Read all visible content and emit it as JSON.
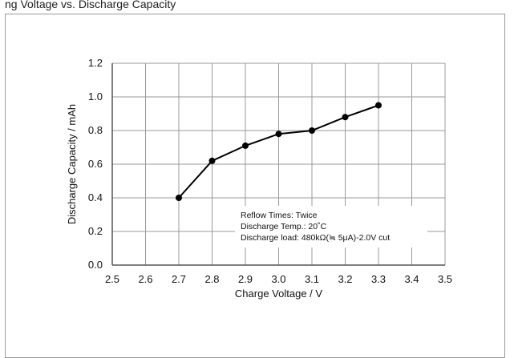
{
  "top_caption": "ng Voltage vs. Discharge Capacity",
  "chart_data": {
    "type": "line",
    "title": "",
    "xlabel": "Charge Voltage / V",
    "ylabel": "Discharge Capacity / mAh",
    "xlim": [
      2.5,
      3.5
    ],
    "ylim": [
      0.0,
      1.2
    ],
    "x_ticks": [
      "2.5",
      "2.6",
      "2.7",
      "2.8",
      "2.9",
      "3.0",
      "3.1",
      "3.2",
      "3.3",
      "3.4",
      "3.5"
    ],
    "y_ticks": [
      "0.0",
      "0.2",
      "0.4",
      "0.6",
      "0.8",
      "1.0",
      "1.2"
    ],
    "grid": true,
    "series": [
      {
        "x": [
          2.7,
          2.8,
          2.9,
          3.0,
          3.1,
          3.2,
          3.3
        ],
        "y": [
          0.4,
          0.62,
          0.71,
          0.78,
          0.8,
          0.88,
          0.95
        ]
      }
    ],
    "annotation": [
      "Reflow Times: Twice",
      "Discharge Temp.: 20˚C",
      "Discharge load: 480kΩ(≒ 5μA)-2.0V cut"
    ],
    "colors": {
      "line": "#000000",
      "grid": "#999999",
      "axis": "#555555"
    }
  }
}
